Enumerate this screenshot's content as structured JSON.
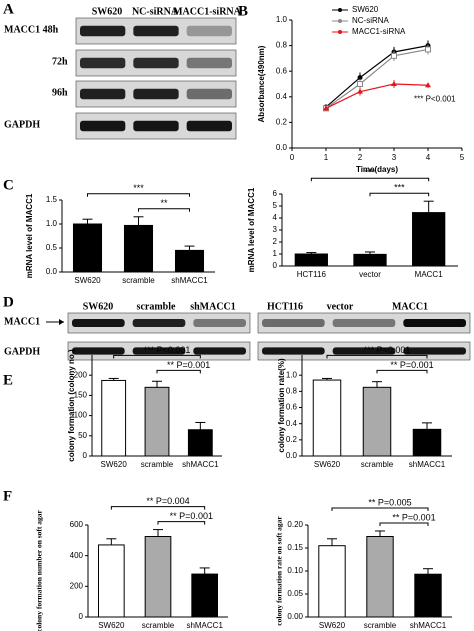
{
  "figure": {
    "panels": [
      "A",
      "B",
      "C",
      "D",
      "E",
      "F"
    ]
  },
  "blot_a": {
    "lanes": [
      "SW620",
      "NC-siRNA",
      "MACC1-siRNA"
    ],
    "rows": [
      "MACC1 48h",
      "72h",
      "96h",
      "GAPDH"
    ]
  },
  "blot_d": {
    "lanes": [
      "SW620",
      "scramble",
      "shMACC1",
      "HCT116",
      "vector",
      "MACC1"
    ],
    "rows": [
      "MACC1",
      "GAPDH"
    ]
  },
  "chart_data": [
    {
      "type": "line",
      "ylabel": "Absorbance(490nm)",
      "xlabel": "Time(days)",
      "x": [
        1,
        2,
        3,
        4
      ],
      "xlim": [
        0,
        5
      ],
      "xticks": [
        0,
        1,
        2,
        3,
        4,
        5
      ],
      "ylim": [
        0,
        1
      ],
      "yticks": [
        {
          "value": 0,
          "label": "0.0"
        },
        {
          "value": 0.2,
          "label": "0.2"
        },
        {
          "value": 0.4,
          "label": "0.4"
        },
        {
          "value": 0.6,
          "label": "0.6"
        },
        {
          "value": 0.8,
          "label": "0.8"
        },
        {
          "value": 1,
          "label": "1.0"
        }
      ],
      "series": [
        {
          "name": "SW620",
          "color": "#000000",
          "marker": "circle",
          "values": [
            0.32,
            0.55,
            0.75,
            0.8
          ],
          "errors": [
            0.02,
            0.04,
            0.04,
            0.04
          ]
        },
        {
          "name": "NC-siRNA",
          "color": "#888888",
          "marker": "square",
          "values": [
            0.31,
            0.5,
            0.72,
            0.77
          ],
          "errors": [
            0.02,
            0.04,
            0.04,
            0.04
          ]
        },
        {
          "name": "MACC1-siRNA",
          "color": "#e8141c",
          "marker": "triangle",
          "values": [
            0.31,
            0.44,
            0.5,
            0.49
          ],
          "errors": [
            0.02,
            0.03,
            0.03,
            0.02
          ]
        }
      ],
      "annotation": "*** P<0.001"
    },
    {
      "type": "bar",
      "ylabel": "mRNA level of MACC1",
      "categories": [
        "SW620",
        "scramble",
        "shMACC1"
      ],
      "values": [
        1.0,
        0.97,
        0.45
      ],
      "errors": [
        0.1,
        0.18,
        0.09
      ],
      "colors": [
        "#000000",
        "#000000",
        "#000000"
      ],
      "ylim": [
        0,
        1.5
      ],
      "yticks": [
        {
          "value": 0,
          "label": "0.0"
        },
        {
          "value": 0.5,
          "label": "0.5"
        },
        {
          "value": 1,
          "label": "1.0"
        },
        {
          "value": 1.5,
          "label": "1.5"
        }
      ],
      "brackets": [
        {
          "between": [
            "SW620",
            "shMACC1"
          ],
          "label": "***"
        },
        {
          "between": [
            "scramble",
            "shMACC1"
          ],
          "label": "**"
        }
      ]
    },
    {
      "type": "bar",
      "ylabel": "mRNA level of MACC1",
      "categories": [
        "HCT116",
        "vector",
        "MACC1"
      ],
      "values": [
        1.0,
        0.97,
        4.45
      ],
      "errors": [
        0.12,
        0.2,
        0.95
      ],
      "colors": [
        "#000000",
        "#000000",
        "#000000"
      ],
      "ylim": [
        0,
        6
      ],
      "yticks": [
        0,
        1,
        2,
        3,
        4,
        5,
        6
      ],
      "brackets": [
        {
          "between": [
            "HCT116",
            "MACC1"
          ],
          "label": "***"
        },
        {
          "between": [
            "vector",
            "MACC1"
          ],
          "label": "***"
        }
      ]
    },
    {
      "type": "bar",
      "ylabel": "colony formation (colony no.)",
      "categories": [
        "SW620",
        "scramble",
        "shMACC1"
      ],
      "values": [
        187,
        170,
        65
      ],
      "errors": [
        5,
        15,
        18
      ],
      "colors": [
        "#ffffff",
        "#aaaaaa",
        "#000000"
      ],
      "ylim": [
        0,
        250
      ],
      "yticks": [
        0,
        50,
        100,
        150,
        200
      ],
      "brackets": [
        {
          "between": [
            "SW620",
            "shMACC1"
          ],
          "label": "*** P<0.001"
        },
        {
          "between": [
            "scramble",
            "shMACC1"
          ],
          "label": "** P=0.001"
        }
      ]
    },
    {
      "type": "bar",
      "ylabel": "colony formation rate(%)",
      "categories": [
        "SW620",
        "scramble",
        "shMACC1"
      ],
      "values": [
        0.94,
        0.85,
        0.33
      ],
      "errors": [
        0.02,
        0.07,
        0.08
      ],
      "colors": [
        "#ffffff",
        "#aaaaaa",
        "#000000"
      ],
      "ylim": [
        0,
        1.25
      ],
      "yticks": [
        {
          "value": 0,
          "label": "0.0"
        },
        {
          "value": 0.2,
          "label": "0.2"
        },
        {
          "value": 0.4,
          "label": "0.4"
        },
        {
          "value": 0.6,
          "label": "0.6"
        },
        {
          "value": 0.8,
          "label": "0.8"
        },
        {
          "value": 1,
          "label": "1.0"
        }
      ],
      "brackets": [
        {
          "between": [
            "SW620",
            "shMACC1"
          ],
          "label": "*** P<0.001"
        },
        {
          "between": [
            "scramble",
            "shMACC1"
          ],
          "label": "** P=0.001"
        }
      ]
    },
    {
      "type": "bar",
      "ylabel": "colony formation number on soft agar",
      "categories": [
        "SW620",
        "scramble",
        "shMACC1"
      ],
      "values": [
        470,
        525,
        280
      ],
      "errors": [
        40,
        45,
        40
      ],
      "colors": [
        "#ffffff",
        "#aaaaaa",
        "#000000"
      ],
      "ylim": [
        0,
        600
      ],
      "yticks": [
        0,
        200,
        400,
        600
      ],
      "brackets": [
        {
          "between": [
            "SW620",
            "shMACC1"
          ],
          "label": "** P=0.004"
        },
        {
          "between": [
            "scramble",
            "shMACC1"
          ],
          "label": "** P=0.001"
        }
      ]
    },
    {
      "type": "bar",
      "ylabel": "colony formation rate on soft agar",
      "categories": [
        "SW620",
        "scramble",
        "shMACC1"
      ],
      "values": [
        0.155,
        0.175,
        0.093
      ],
      "errors": [
        0.015,
        0.012,
        0.012
      ],
      "colors": [
        "#ffffff",
        "#aaaaaa",
        "#000000"
      ],
      "ylim": [
        0,
        0.2
      ],
      "yticks": [
        {
          "value": 0,
          "label": "0.00"
        },
        {
          "value": 0.05,
          "label": "0.05"
        },
        {
          "value": 0.1,
          "label": "0.10"
        },
        {
          "value": 0.15,
          "label": "0.15"
        },
        {
          "value": 0.2,
          "label": "0.20"
        }
      ],
      "brackets": [
        {
          "between": [
            "SW620",
            "shMACC1"
          ],
          "label": "** P=0.005"
        },
        {
          "between": [
            "scramble",
            "shMACC1"
          ],
          "label": "** P=0.001"
        }
      ]
    }
  ]
}
